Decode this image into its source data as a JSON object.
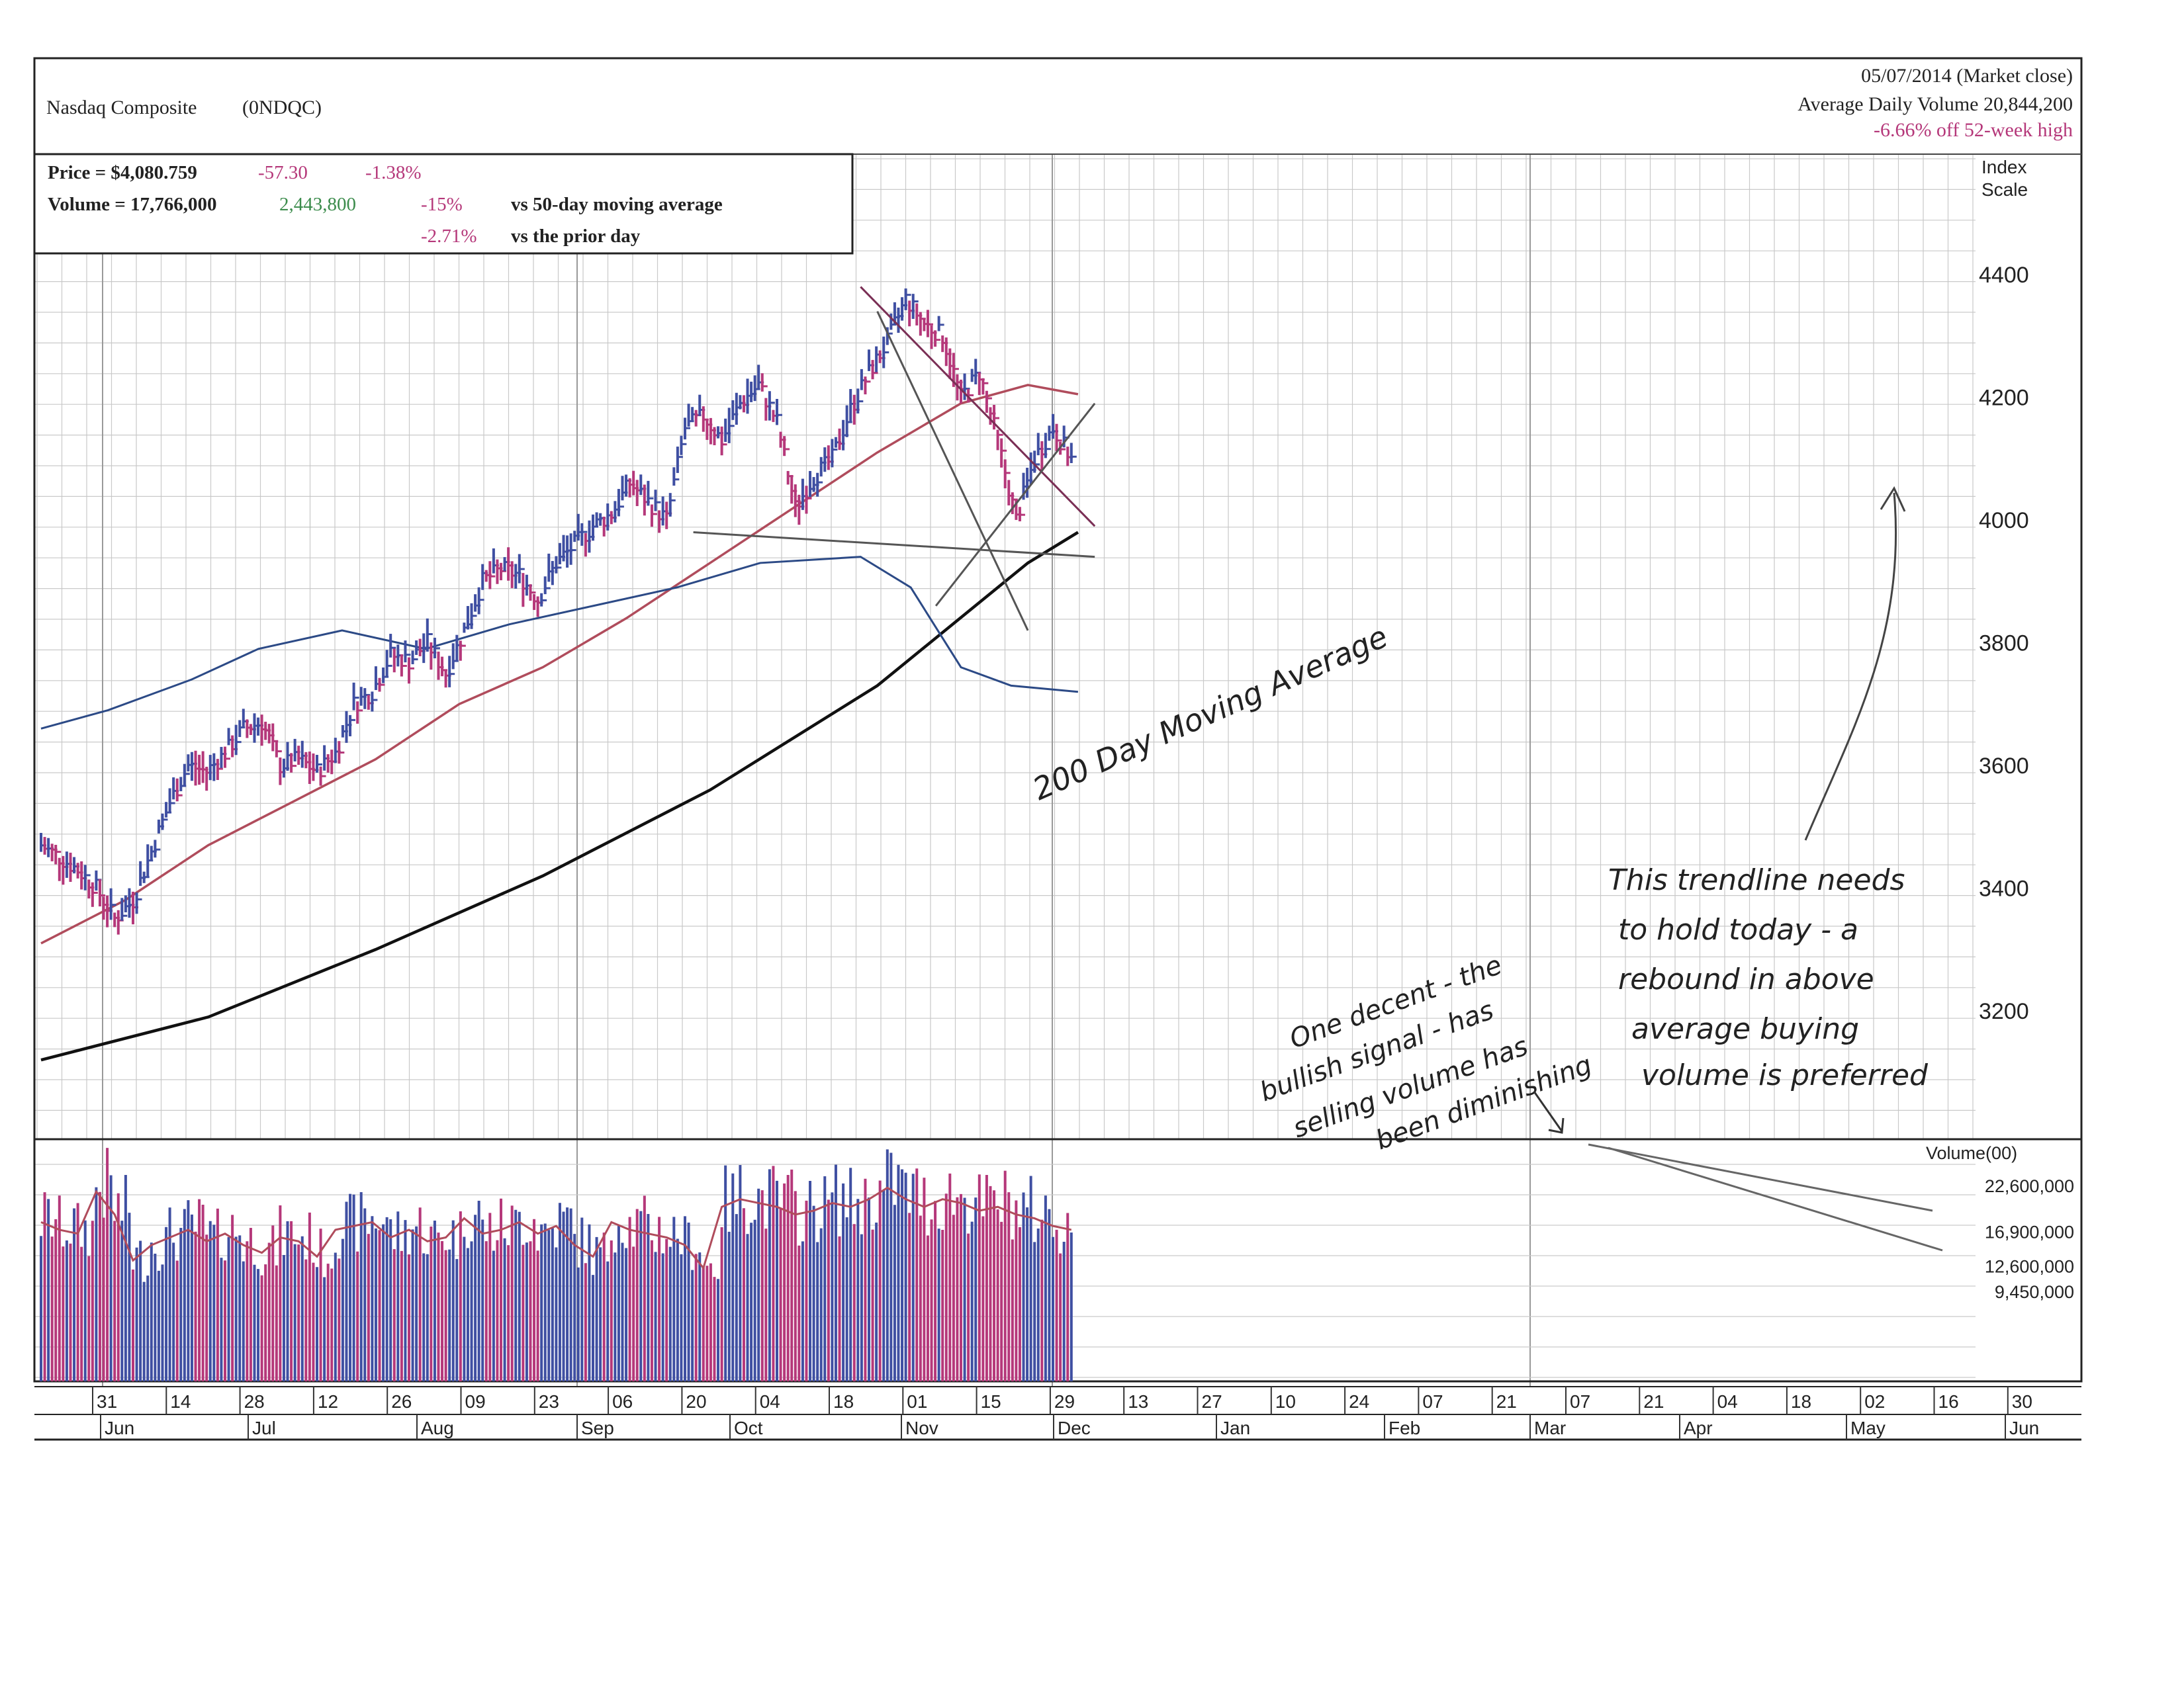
{
  "header": {
    "name": "Nasdaq Composite",
    "symbol": "(0NDQC)",
    "date": "05/07/2014 (Market close)",
    "avg_volume": "Average Daily Volume 20,844,200",
    "off_high": "-6.66% off 52-week high"
  },
  "stats": {
    "price": "Price = $4,080.759",
    "price_change": "-57.30",
    "price_pct": "-1.38%",
    "volume": "Volume = 17,766,000",
    "volume_change": "2,443,800",
    "vs50_pct": "-15%",
    "vs50_label": "vs 50-day moving average",
    "prior_pct": "-2.71%",
    "prior_label": "vs the prior day"
  },
  "price_axis": {
    "label_1": "Index",
    "label_2": "Scale"
  },
  "volume_axis": {
    "label": "Volume(00)"
  },
  "annotations": {
    "ma200": "200 Day Moving Average",
    "trend_note": [
      "This trendline needs",
      "to hold today - a",
      "rebound in above",
      "average buying",
      "volume is preferred"
    ],
    "volume_note": [
      "One decent - the",
      "bullish signal - has",
      "selling volume has",
      "been diminishing"
    ]
  },
  "colors": {
    "up": "#3f4fa2",
    "down": "#b5387a",
    "ma50": "#b04c5c",
    "ma200": "#111111",
    "rs_line": "#2c4a86",
    "grid": "#c9c9c9",
    "green": "#3c8c4c"
  },
  "chart_data": {
    "type": "bar",
    "title": "Nasdaq Composite (0NDQC)",
    "price_axis": {
      "ticks": [
        3200,
        3400,
        3600,
        3800,
        4000,
        4200,
        4400
      ],
      "ylim": [
        3020,
        4460
      ]
    },
    "volume_axis": {
      "ticks": [
        "22,600,000",
        "16,900,000",
        "12,600,000",
        "9,450,000"
      ],
      "tick_values": [
        22600000,
        16900000,
        12600000,
        9450000
      ]
    },
    "x_day_labels": [
      "31",
      "14",
      "28",
      "12",
      "26",
      "09",
      "23",
      "06",
      "20",
      "04",
      "18",
      "01",
      "15",
      "29",
      "13",
      "27",
      "10",
      "24",
      "07",
      "21",
      "07",
      "21",
      "04",
      "18",
      "02",
      "16",
      "30"
    ],
    "x_month_labels": [
      "Jun",
      "Jul",
      "Aug",
      "Sep",
      "Oct",
      "Nov",
      "Dec",
      "Jan",
      "Feb",
      "Mar",
      "Apr",
      "May",
      "Jun"
    ],
    "price_anchors_weekly": [
      3470,
      3450,
      3430,
      3400,
      3350,
      3380,
      3460,
      3540,
      3600,
      3590,
      3620,
      3660,
      3670,
      3600,
      3610,
      3590,
      3620,
      3700,
      3720,
      3780,
      3770,
      3800,
      3750,
      3820,
      3900,
      3920,
      3910,
      3870,
      3930,
      3960,
      3990,
      4010,
      4060,
      4030,
      4000,
      4150,
      4170,
      4130,
      4190,
      4220,
      4160,
      4020,
      4070,
      4100,
      4180,
      4240,
      4290,
      4360,
      4320,
      4300,
      4200,
      4240,
      4130,
      4000,
      4100,
      4150,
      4100
    ],
    "ma50_anchors": [
      [
        0,
        3310
      ],
      [
        10,
        3380
      ],
      [
        20,
        3470
      ],
      [
        30,
        3540
      ],
      [
        40,
        3610
      ],
      [
        50,
        3700
      ],
      [
        60,
        3760
      ],
      [
        70,
        3840
      ],
      [
        80,
        3930
      ],
      [
        90,
        4020
      ],
      [
        100,
        4110
      ],
      [
        110,
        4190
      ],
      [
        118,
        4220
      ],
      [
        124,
        4205
      ]
    ],
    "ma200_anchors": [
      [
        0,
        3120
      ],
      [
        20,
        3190
      ],
      [
        40,
        3300
      ],
      [
        60,
        3420
      ],
      [
        80,
        3560
      ],
      [
        100,
        3730
      ],
      [
        118,
        3930
      ],
      [
        124,
        3980
      ]
    ],
    "rs_line_anchors": [
      [
        0,
        3660
      ],
      [
        8,
        3690
      ],
      [
        18,
        3740
      ],
      [
        26,
        3790
      ],
      [
        36,
        3820
      ],
      [
        46,
        3790
      ],
      [
        56,
        3830
      ],
      [
        66,
        3860
      ],
      [
        76,
        3890
      ],
      [
        86,
        3930
      ],
      [
        98,
        3940
      ],
      [
        104,
        3890
      ],
      [
        110,
        3760
      ],
      [
        116,
        3730
      ],
      [
        124,
        3720
      ]
    ],
    "volume_anchors_weekly": [
      19000000,
      18000000,
      17500000,
      23000000,
      20000000,
      14000000,
      16000000,
      17000000,
      18000000,
      16500000,
      17500000,
      16000000,
      15000000,
      17000000,
      16500000,
      14500000,
      18000000,
      18500000,
      19000000,
      17000000,
      18000000,
      16500000,
      17000000,
      19500000,
      17500000,
      18000000,
      19000000,
      17500000,
      18500000,
      16000000,
      14500000,
      19000000,
      18000000,
      17500000,
      17000000,
      16000000,
      13000000,
      21000000,
      22000000,
      21500000,
      21000000,
      20000000,
      20500000,
      21500000,
      21000000,
      22000000,
      23500000,
      22000000,
      21000000,
      22000000,
      21500000,
      20500000,
      21000000,
      20000000,
      19500000,
      18500000,
      18000000
    ],
    "trendlines": [
      {
        "name": "upper-resistance",
        "from": [
          4380,
          98
        ],
        "to": [
          3990,
          126
        ]
      },
      {
        "name": "rising-support",
        "from": [
          3860,
          107
        ],
        "to": [
          4190,
          126
        ]
      },
      {
        "name": "steep-channel",
        "from": [
          4340,
          100
        ],
        "to": [
          3820,
          118
        ]
      },
      {
        "name": "flat-support",
        "from": [
          3980,
          78
        ],
        "to": [
          3940,
          126
        ]
      }
    ]
  }
}
